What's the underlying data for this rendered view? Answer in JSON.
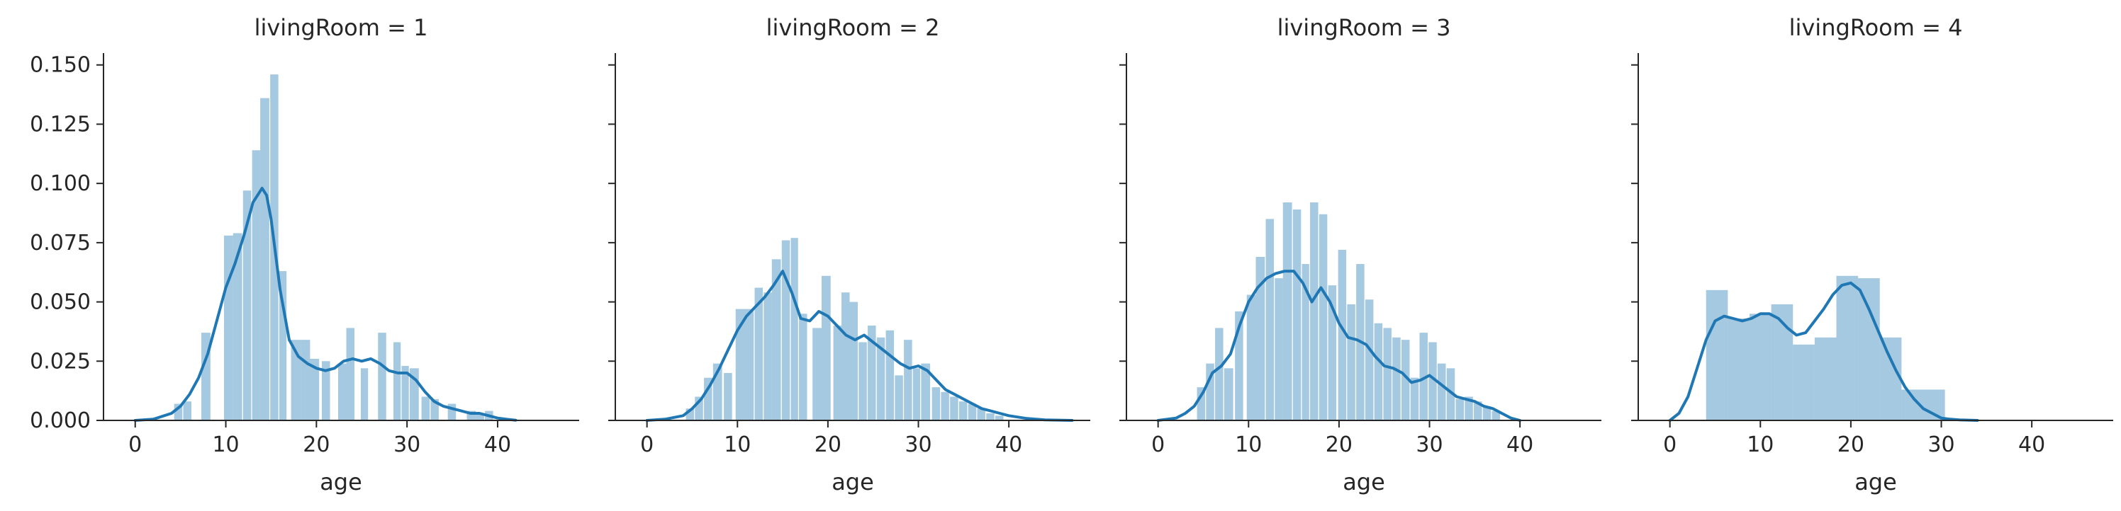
{
  "figure": {
    "xlabel": "age",
    "yticks": [
      "0.000",
      "0.025",
      "0.050",
      "0.075",
      "0.100",
      "0.125",
      "0.150"
    ],
    "xticks": [
      "0",
      "10",
      "20",
      "30",
      "40"
    ],
    "color": "#1f77b4"
  },
  "chart_data": [
    {
      "type": "bar",
      "title": "livingRoom = 1",
      "xlabel": "age",
      "xlim": [
        -3.5,
        49
      ],
      "ylim": [
        0,
        0.155
      ],
      "hist": [
        {
          "x0": 4.3,
          "x1": 5.2,
          "y": 0.007
        },
        {
          "x0": 5.3,
          "x1": 6.2,
          "y": 0.008
        },
        {
          "x0": 7.3,
          "x1": 8.3,
          "y": 0.037
        },
        {
          "x0": 9.8,
          "x1": 10.8,
          "y": 0.078
        },
        {
          "x0": 10.8,
          "x1": 11.8,
          "y": 0.079
        },
        {
          "x0": 11.9,
          "x1": 12.8,
          "y": 0.097
        },
        {
          "x0": 12.9,
          "x1": 13.8,
          "y": 0.114
        },
        {
          "x0": 13.8,
          "x1": 14.8,
          "y": 0.136
        },
        {
          "x0": 14.9,
          "x1": 15.8,
          "y": 0.146
        },
        {
          "x0": 15.9,
          "x1": 16.7,
          "y": 0.063
        },
        {
          "x0": 17.2,
          "x1": 18.3,
          "y": 0.034
        },
        {
          "x0": 18.3,
          "x1": 19.3,
          "y": 0.034
        },
        {
          "x0": 19.3,
          "x1": 20.3,
          "y": 0.026
        },
        {
          "x0": 20.6,
          "x1": 21.5,
          "y": 0.025
        },
        {
          "x0": 22.4,
          "x1": 23.3,
          "y": 0.024
        },
        {
          "x0": 23.3,
          "x1": 24.2,
          "y": 0.039
        },
        {
          "x0": 24.9,
          "x1": 25.7,
          "y": 0.022
        },
        {
          "x0": 26.8,
          "x1": 27.7,
          "y": 0.037
        },
        {
          "x0": 28.5,
          "x1": 29.3,
          "y": 0.033
        },
        {
          "x0": 29.4,
          "x1": 30.2,
          "y": 0.023
        },
        {
          "x0": 30.3,
          "x1": 31.3,
          "y": 0.022
        },
        {
          "x0": 31.6,
          "x1": 32.5,
          "y": 0.01
        },
        {
          "x0": 32.6,
          "x1": 33.5,
          "y": 0.009
        },
        {
          "x0": 34.5,
          "x1": 35.4,
          "y": 0.007
        },
        {
          "x0": 36.6,
          "x1": 37.6,
          "y": 0.004
        },
        {
          "x0": 37.6,
          "x1": 38.5,
          "y": 0.003
        },
        {
          "x0": 38.6,
          "x1": 39.5,
          "y": 0.004
        }
      ],
      "kde": {
        "x": [
          0,
          2,
          4,
          5,
          6,
          7,
          8,
          9,
          10,
          11,
          12,
          13,
          14,
          14.5,
          15,
          16,
          17,
          18,
          19,
          20,
          21,
          22,
          23,
          24,
          25,
          26,
          27,
          28,
          29,
          30,
          31,
          32,
          33,
          34,
          35,
          36,
          37,
          38,
          39,
          40,
          41,
          42
        ],
        "y": [
          0.0,
          0.0005,
          0.003,
          0.006,
          0.011,
          0.018,
          0.028,
          0.042,
          0.056,
          0.066,
          0.078,
          0.092,
          0.098,
          0.095,
          0.085,
          0.055,
          0.034,
          0.027,
          0.024,
          0.022,
          0.021,
          0.022,
          0.025,
          0.026,
          0.025,
          0.026,
          0.024,
          0.021,
          0.02,
          0.02,
          0.017,
          0.012,
          0.008,
          0.006,
          0.005,
          0.004,
          0.003,
          0.003,
          0.002,
          0.001,
          0.0005,
          0.0001
        ]
      }
    },
    {
      "type": "bar",
      "title": "livingRoom = 2",
      "xlabel": "age",
      "xlim": [
        -3.5,
        49
      ],
      "ylim": [
        0,
        0.155
      ],
      "hist": [
        {
          "x0": 4.3,
          "x1": 5.2,
          "y": 0.005
        },
        {
          "x0": 5.3,
          "x1": 6.2,
          "y": 0.01
        },
        {
          "x0": 6.3,
          "x1": 7.2,
          "y": 0.018
        },
        {
          "x0": 7.3,
          "x1": 8.3,
          "y": 0.024
        },
        {
          "x0": 8.5,
          "x1": 9.4,
          "y": 0.02
        },
        {
          "x0": 9.8,
          "x1": 10.8,
          "y": 0.047
        },
        {
          "x0": 10.8,
          "x1": 11.8,
          "y": 0.047
        },
        {
          "x0": 11.9,
          "x1": 12.8,
          "y": 0.056
        },
        {
          "x0": 12.9,
          "x1": 13.8,
          "y": 0.054
        },
        {
          "x0": 13.8,
          "x1": 14.8,
          "y": 0.068
        },
        {
          "x0": 14.9,
          "x1": 15.8,
          "y": 0.076
        },
        {
          "x0": 15.9,
          "x1": 16.7,
          "y": 0.077
        },
        {
          "x0": 16.8,
          "x1": 17.7,
          "y": 0.045
        },
        {
          "x0": 18.3,
          "x1": 19.3,
          "y": 0.039
        },
        {
          "x0": 19.3,
          "x1": 20.3,
          "y": 0.061
        },
        {
          "x0": 20.6,
          "x1": 21.5,
          "y": 0.04
        },
        {
          "x0": 21.5,
          "x1": 22.4,
          "y": 0.054
        },
        {
          "x0": 22.4,
          "x1": 23.3,
          "y": 0.05
        },
        {
          "x0": 23.4,
          "x1": 24.3,
          "y": 0.033
        },
        {
          "x0": 24.4,
          "x1": 25.3,
          "y": 0.04
        },
        {
          "x0": 25.4,
          "x1": 26.3,
          "y": 0.035
        },
        {
          "x0": 26.4,
          "x1": 27.3,
          "y": 0.038
        },
        {
          "x0": 27.4,
          "x1": 28.3,
          "y": 0.019
        },
        {
          "x0": 28.4,
          "x1": 29.3,
          "y": 0.034
        },
        {
          "x0": 29.4,
          "x1": 30.2,
          "y": 0.022
        },
        {
          "x0": 30.3,
          "x1": 31.3,
          "y": 0.024
        },
        {
          "x0": 31.5,
          "x1": 32.4,
          "y": 0.014
        },
        {
          "x0": 32.5,
          "x1": 33.4,
          "y": 0.012
        },
        {
          "x0": 33.5,
          "x1": 34.4,
          "y": 0.01
        },
        {
          "x0": 34.5,
          "x1": 35.4,
          "y": 0.008
        },
        {
          "x0": 35.5,
          "x1": 36.4,
          "y": 0.007
        },
        {
          "x0": 36.5,
          "x1": 37.4,
          "y": 0.005
        },
        {
          "x0": 37.5,
          "x1": 38.4,
          "y": 0.003
        },
        {
          "x0": 38.5,
          "x1": 39.4,
          "y": 0.002
        }
      ],
      "kde": {
        "x": [
          0,
          2,
          4,
          5,
          6,
          7,
          8,
          9,
          10,
          11,
          12,
          13,
          14,
          15,
          16,
          17,
          18,
          19,
          20,
          21,
          22,
          23,
          24,
          25,
          26,
          27,
          28,
          29,
          30,
          31,
          32,
          33,
          34,
          35,
          36,
          37,
          38,
          39,
          40,
          42,
          44,
          47
        ],
        "y": [
          0.0,
          0.0005,
          0.002,
          0.005,
          0.009,
          0.015,
          0.022,
          0.03,
          0.038,
          0.044,
          0.048,
          0.052,
          0.057,
          0.063,
          0.054,
          0.043,
          0.042,
          0.046,
          0.044,
          0.04,
          0.036,
          0.034,
          0.036,
          0.033,
          0.03,
          0.027,
          0.024,
          0.022,
          0.023,
          0.021,
          0.017,
          0.013,
          0.011,
          0.009,
          0.007,
          0.005,
          0.004,
          0.003,
          0.002,
          0.0008,
          0.0002,
          0.0
        ]
      }
    },
    {
      "type": "bar",
      "title": "livingRoom = 3",
      "xlabel": "age",
      "xlim": [
        -3.5,
        49
      ],
      "ylim": [
        0,
        0.155
      ],
      "hist": [
        {
          "x0": 4.3,
          "x1": 5.2,
          "y": 0.014
        },
        {
          "x0": 5.3,
          "x1": 6.2,
          "y": 0.024
        },
        {
          "x0": 6.3,
          "x1": 7.2,
          "y": 0.039
        },
        {
          "x0": 7.3,
          "x1": 8.3,
          "y": 0.022
        },
        {
          "x0": 8.5,
          "x1": 9.4,
          "y": 0.046
        },
        {
          "x0": 9.8,
          "x1": 10.8,
          "y": 0.053
        },
        {
          "x0": 10.8,
          "x1": 11.8,
          "y": 0.069
        },
        {
          "x0": 11.9,
          "x1": 12.8,
          "y": 0.085
        },
        {
          "x0": 12.9,
          "x1": 13.8,
          "y": 0.06
        },
        {
          "x0": 13.8,
          "x1": 14.8,
          "y": 0.092
        },
        {
          "x0": 14.9,
          "x1": 15.8,
          "y": 0.089
        },
        {
          "x0": 15.9,
          "x1": 16.7,
          "y": 0.066
        },
        {
          "x0": 16.8,
          "x1": 17.7,
          "y": 0.092
        },
        {
          "x0": 17.8,
          "x1": 18.7,
          "y": 0.087
        },
        {
          "x0": 18.8,
          "x1": 19.7,
          "y": 0.057
        },
        {
          "x0": 19.9,
          "x1": 20.8,
          "y": 0.072
        },
        {
          "x0": 20.9,
          "x1": 21.8,
          "y": 0.049
        },
        {
          "x0": 21.9,
          "x1": 22.8,
          "y": 0.066
        },
        {
          "x0": 22.9,
          "x1": 23.8,
          "y": 0.051
        },
        {
          "x0": 23.9,
          "x1": 24.8,
          "y": 0.041
        },
        {
          "x0": 24.9,
          "x1": 25.8,
          "y": 0.039
        },
        {
          "x0": 25.9,
          "x1": 26.8,
          "y": 0.035
        },
        {
          "x0": 26.9,
          "x1": 27.8,
          "y": 0.034
        },
        {
          "x0": 27.9,
          "x1": 28.8,
          "y": 0.018
        },
        {
          "x0": 28.9,
          "x1": 29.8,
          "y": 0.037
        },
        {
          "x0": 29.9,
          "x1": 30.8,
          "y": 0.033
        },
        {
          "x0": 30.9,
          "x1": 31.8,
          "y": 0.024
        },
        {
          "x0": 31.9,
          "x1": 32.8,
          "y": 0.022
        },
        {
          "x0": 32.9,
          "x1": 33.8,
          "y": 0.009
        },
        {
          "x0": 33.9,
          "x1": 34.8,
          "y": 0.01
        },
        {
          "x0": 34.9,
          "x1": 35.8,
          "y": 0.008
        },
        {
          "x0": 35.9,
          "x1": 36.8,
          "y": 0.006
        },
        {
          "x0": 36.9,
          "x1": 37.8,
          "y": 0.004
        }
      ],
      "kde": {
        "x": [
          0,
          2,
          3,
          4,
          5,
          6,
          7,
          8,
          9,
          10,
          11,
          12,
          13,
          14,
          15,
          16,
          17,
          18,
          19,
          20,
          21,
          22,
          23,
          24,
          25,
          26,
          27,
          28,
          29,
          30,
          31,
          32,
          33,
          34,
          35,
          36,
          37,
          38,
          39,
          40
        ],
        "y": [
          0.0,
          0.001,
          0.003,
          0.006,
          0.012,
          0.02,
          0.023,
          0.028,
          0.04,
          0.05,
          0.056,
          0.06,
          0.062,
          0.063,
          0.063,
          0.058,
          0.05,
          0.056,
          0.05,
          0.041,
          0.035,
          0.034,
          0.032,
          0.027,
          0.023,
          0.022,
          0.02,
          0.016,
          0.017,
          0.019,
          0.016,
          0.013,
          0.01,
          0.009,
          0.008,
          0.006,
          0.005,
          0.003,
          0.001,
          0.0
        ]
      }
    },
    {
      "type": "bar",
      "title": "livingRoom = 4",
      "xlabel": "age",
      "xlim": [
        -3.5,
        49
      ],
      "ylim": [
        0,
        0.155
      ],
      "hist": [
        {
          "x0": 4.0,
          "x1": 6.4,
          "y": 0.055
        },
        {
          "x0": 6.4,
          "x1": 8.8,
          "y": 0.043
        },
        {
          "x0": 8.8,
          "x1": 11.2,
          "y": 0.045
        },
        {
          "x0": 11.2,
          "x1": 13.6,
          "y": 0.049
        },
        {
          "x0": 13.6,
          "x1": 16.0,
          "y": 0.032
        },
        {
          "x0": 16.0,
          "x1": 18.4,
          "y": 0.035
        },
        {
          "x0": 18.4,
          "x1": 20.8,
          "y": 0.061
        },
        {
          "x0": 20.8,
          "x1": 23.2,
          "y": 0.06
        },
        {
          "x0": 23.2,
          "x1": 25.6,
          "y": 0.035
        },
        {
          "x0": 25.6,
          "x1": 28.0,
          "y": 0.013
        },
        {
          "x0": 28.0,
          "x1": 30.4,
          "y": 0.013
        }
      ],
      "kde": {
        "x": [
          0,
          1,
          2,
          3,
          4,
          5,
          6,
          7,
          8,
          9,
          10,
          11,
          12,
          13,
          14,
          15,
          16,
          17,
          18,
          19,
          20,
          21,
          22,
          23,
          24,
          25,
          26,
          27,
          28,
          29,
          30,
          31,
          32,
          34
        ],
        "y": [
          0.0,
          0.003,
          0.01,
          0.022,
          0.034,
          0.042,
          0.044,
          0.043,
          0.042,
          0.043,
          0.045,
          0.045,
          0.043,
          0.039,
          0.036,
          0.037,
          0.042,
          0.047,
          0.053,
          0.057,
          0.058,
          0.055,
          0.047,
          0.038,
          0.029,
          0.021,
          0.014,
          0.009,
          0.005,
          0.003,
          0.001,
          0.0005,
          0.0002,
          0.0
        ]
      }
    }
  ]
}
